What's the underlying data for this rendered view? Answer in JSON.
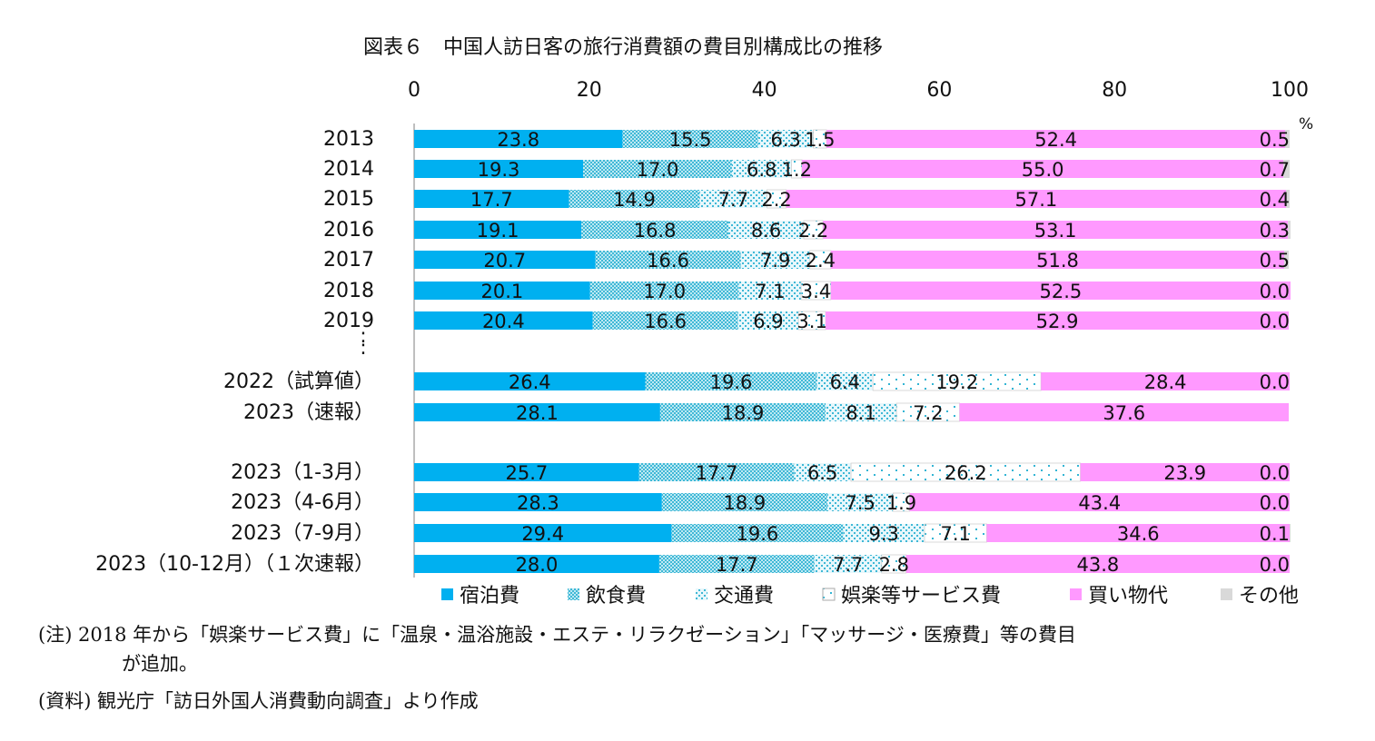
{
  "chart_data": {
    "type": "bar",
    "orientation": "horizontal",
    "stacked": true,
    "title": "図表６　中国人訪日客の旅行消費額の費目別構成比の推移",
    "unit": "%",
    "xlim": [
      0,
      100
    ],
    "xticks": [
      "0",
      "20",
      "40",
      "60",
      "80",
      "100"
    ],
    "categories": [
      "2013",
      "2014",
      "2015",
      "2016",
      "2017",
      "2018",
      "2019",
      "2022（試算値）",
      "2023（速報）",
      "2023（1-3月）",
      "2023（4-6月）",
      "2023（7-9月）",
      "2023（10-12月）（１次速報）"
    ],
    "gap_marker": ":",
    "series": [
      {
        "name": "宿泊費",
        "color": "#00b0f0",
        "values": [
          23.8,
          19.3,
          17.7,
          19.1,
          20.7,
          20.1,
          20.4,
          26.4,
          28.1,
          25.7,
          28.3,
          29.4,
          28.0
        ]
      },
      {
        "name": "飲食費",
        "color": "#8ed8ea",
        "values": [
          15.5,
          17.0,
          14.9,
          16.8,
          16.6,
          17.0,
          16.6,
          19.6,
          18.9,
          17.7,
          18.9,
          19.6,
          17.7
        ]
      },
      {
        "name": "交通費",
        "color": "#b8e6ef",
        "values": [
          6.3,
          6.8,
          7.7,
          8.6,
          7.9,
          7.1,
          6.9,
          6.4,
          8.1,
          6.5,
          7.5,
          9.3,
          7.7
        ]
      },
      {
        "name": "娯楽等サービス費",
        "color": "#ffffff",
        "values": [
          1.5,
          1.2,
          2.2,
          2.2,
          2.4,
          3.4,
          3.1,
          19.2,
          7.2,
          26.2,
          1.9,
          7.1,
          2.8
        ]
      },
      {
        "name": "買い物代",
        "color": "#ff99ff",
        "values": [
          52.4,
          55.0,
          57.1,
          53.1,
          51.8,
          52.5,
          52.9,
          28.4,
          37.6,
          23.9,
          43.4,
          34.6,
          43.8
        ]
      },
      {
        "name": "その他",
        "color": "#d9d9d9",
        "values": [
          0.5,
          0.7,
          0.4,
          0.3,
          0.5,
          0.0,
          0.0,
          0.0,
          null,
          0.0,
          0.0,
          0.1,
          0.0
        ]
      }
    ],
    "data_labels": [
      [
        "23.8",
        "15.5",
        "6.3",
        "1.5",
        "52.4",
        "0.5"
      ],
      [
        "19.3",
        "17.0",
        "6.8",
        "1.2",
        "55.0",
        "0.7"
      ],
      [
        "17.7",
        "14.9",
        "7.7",
        "2.2",
        "57.1",
        "0.4"
      ],
      [
        "19.1",
        "16.8",
        "8.6",
        "2.2",
        "53.1",
        "0.3"
      ],
      [
        "20.7",
        "16.6",
        "7.9",
        "2.4",
        "51.8",
        "0.5"
      ],
      [
        "20.1",
        "17.0",
        "7.1",
        "3.4",
        "52.5",
        "0.0"
      ],
      [
        "20.4",
        "16.6",
        "6.9",
        "3.1",
        "52.9",
        "0.0"
      ],
      [
        "26.4",
        "19.6",
        "6.4",
        "19.2",
        "28.4",
        "0.0"
      ],
      [
        "28.1",
        "18.9",
        "8.1",
        "7.2",
        "37.6",
        ""
      ],
      [
        "25.7",
        "17.7",
        "6.5",
        "26.2",
        "23.9",
        "0.0"
      ],
      [
        "28.3",
        "18.9",
        "7.5",
        "1.9",
        "43.4",
        "0.0"
      ],
      [
        "29.4",
        "19.6",
        "9.3",
        "7.1",
        "34.6",
        "0.1"
      ],
      [
        "28.0",
        "17.7",
        "7.7",
        "2.8",
        "43.8",
        "0.0"
      ]
    ],
    "legend_position": "bottom"
  },
  "notes": {
    "note1_line1": "(注) 2018 年から「娯楽サービス費」に「温泉・温浴施設・エステ・リラクゼーション」「マッサージ・医療費」等の費目",
    "note1_line2": "が追加。",
    "source": "(資料) 観光庁「訪日外国人消費動向調査」より作成"
  }
}
